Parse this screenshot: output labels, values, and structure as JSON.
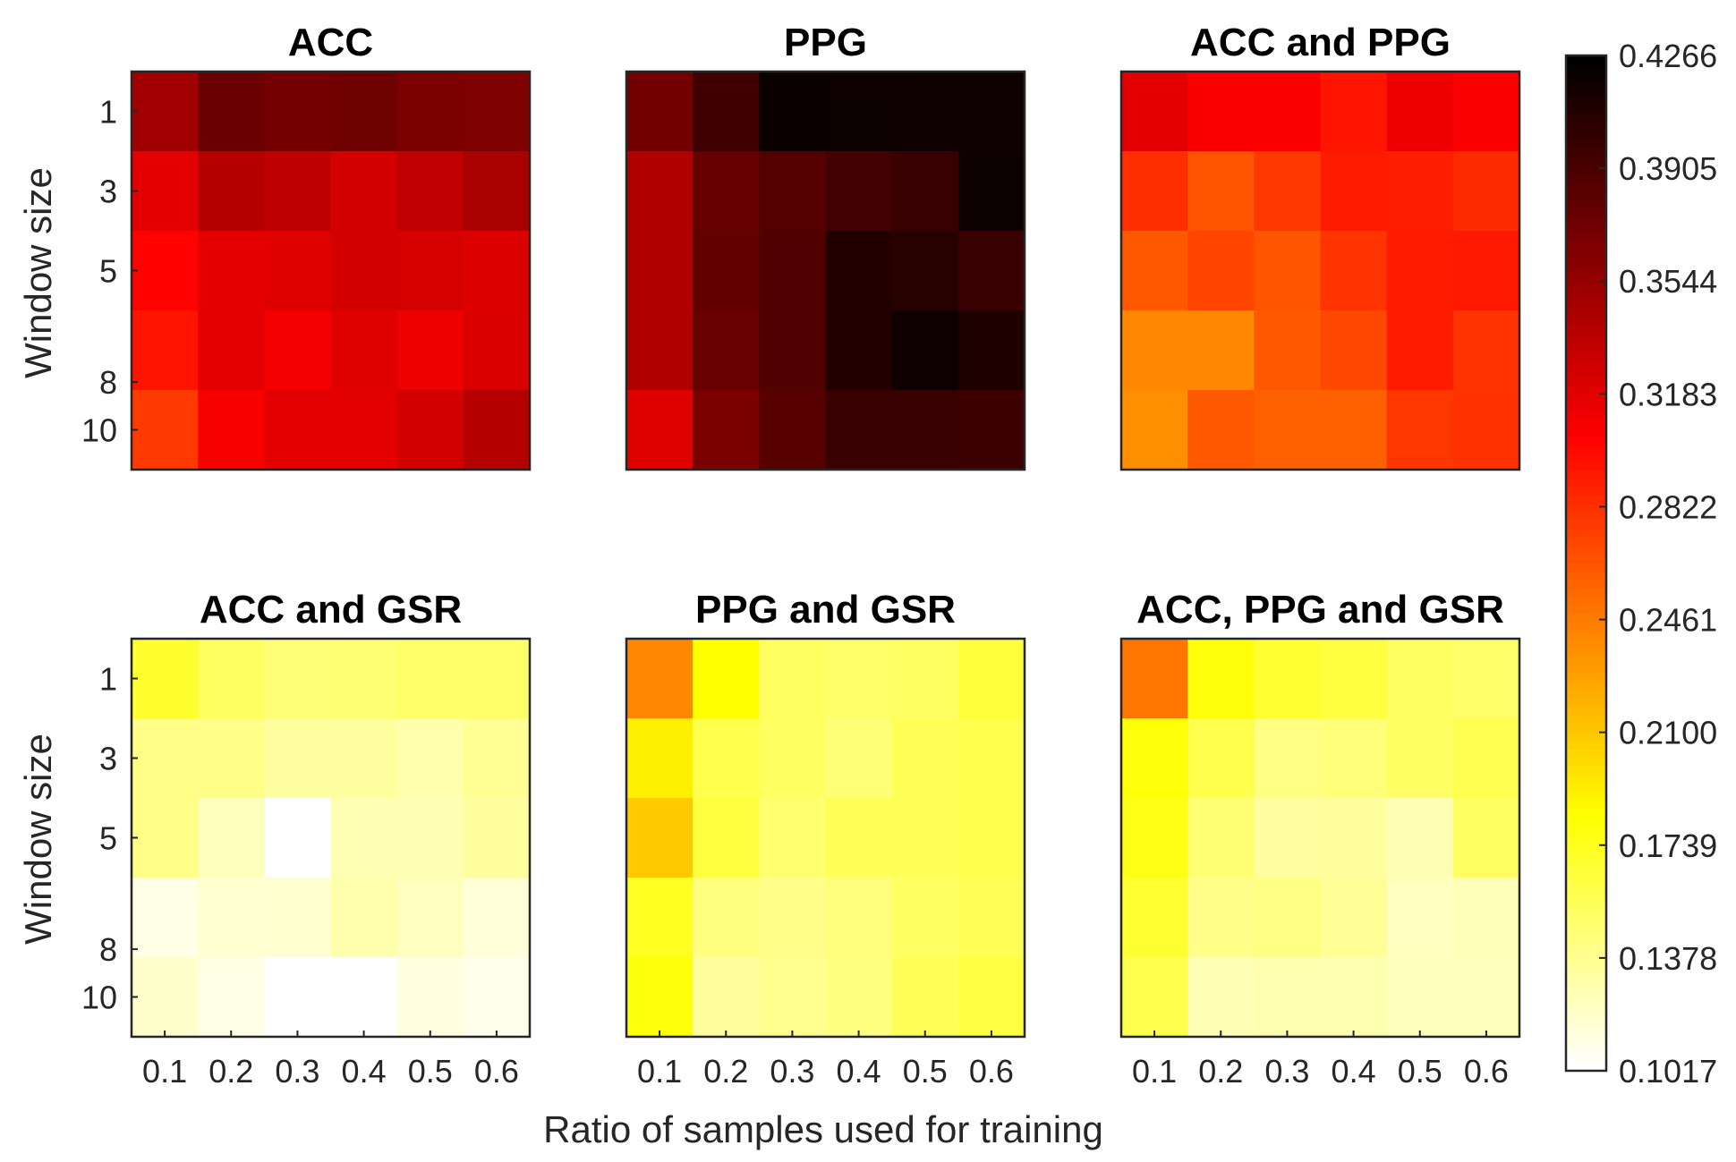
{
  "chart_data": {
    "type": "heatmap",
    "xlabel": "Ratio of samples used for training",
    "ylabel": "Window size",
    "x_categories": [
      "0.1",
      "0.2",
      "0.3",
      "0.4",
      "0.5",
      "0.6"
    ],
    "y_categories": [
      "1",
      "3",
      "5",
      "8",
      "10"
    ],
    "colormap": "hot",
    "colorbar": {
      "min": 0.1017,
      "max": 0.4266,
      "ticks": [
        "0.4266",
        "0.3905",
        "0.3544",
        "0.3183",
        "0.2822",
        "0.2461",
        "0.2100",
        "0.1739",
        "0.1378",
        "0.1017"
      ]
    },
    "panels": [
      {
        "title": "ACC",
        "values": [
          [
            0.35,
            0.376,
            0.371,
            0.374,
            0.367,
            0.366
          ],
          [
            0.318,
            0.34,
            0.336,
            0.326,
            0.335,
            0.346
          ],
          [
            0.304,
            0.317,
            0.319,
            0.326,
            0.325,
            0.321
          ],
          [
            0.295,
            0.318,
            0.31,
            0.32,
            0.313,
            0.322
          ],
          [
            0.277,
            0.308,
            0.318,
            0.318,
            0.326,
            0.34
          ]
        ]
      },
      {
        "title": "PPG",
        "values": [
          [
            0.372,
            0.396,
            0.422,
            0.421,
            0.42,
            0.42
          ],
          [
            0.342,
            0.378,
            0.386,
            0.394,
            0.4,
            0.421
          ],
          [
            0.342,
            0.38,
            0.388,
            0.41,
            0.408,
            0.4
          ],
          [
            0.342,
            0.377,
            0.388,
            0.41,
            0.42,
            0.412
          ],
          [
            0.32,
            0.368,
            0.385,
            0.4,
            0.4,
            0.398
          ]
        ]
      },
      {
        "title": "ACC and PPG",
        "values": [
          [
            0.318,
            0.307,
            0.307,
            0.295,
            0.313,
            0.307
          ],
          [
            0.283,
            0.264,
            0.278,
            0.292,
            0.29,
            0.284
          ],
          [
            0.262,
            0.272,
            0.264,
            0.28,
            0.292,
            0.293
          ],
          [
            0.24,
            0.24,
            0.262,
            0.27,
            0.292,
            0.28
          ],
          [
            0.237,
            0.262,
            0.259,
            0.259,
            0.279,
            0.281
          ]
        ]
      },
      {
        "title": "ACC and GSR",
        "values": [
          [
            0.168,
            0.152,
            0.145,
            0.146,
            0.15,
            0.15
          ],
          [
            0.14,
            0.14,
            0.132,
            0.132,
            0.128,
            0.136
          ],
          [
            0.14,
            0.123,
            0.1017,
            0.126,
            0.126,
            0.133
          ],
          [
            0.11,
            0.116,
            0.117,
            0.128,
            0.122,
            0.114
          ],
          [
            0.118,
            0.11,
            0.1017,
            0.1017,
            0.112,
            0.108
          ]
        ]
      },
      {
        "title": "PPG and GSR",
        "values": [
          [
            0.24,
            0.183,
            0.152,
            0.15,
            0.151,
            0.164
          ],
          [
            0.19,
            0.158,
            0.152,
            0.145,
            0.155,
            0.158
          ],
          [
            0.208,
            0.163,
            0.147,
            0.155,
            0.155,
            0.158
          ],
          [
            0.172,
            0.142,
            0.139,
            0.143,
            0.151,
            0.155
          ],
          [
            0.18,
            0.133,
            0.137,
            0.142,
            0.155,
            0.162
          ]
        ]
      },
      {
        "title": "ACC, PPG and GSR",
        "values": [
          [
            0.248,
            0.18,
            0.167,
            0.163,
            0.152,
            0.15
          ],
          [
            0.18,
            0.158,
            0.141,
            0.144,
            0.151,
            0.157
          ],
          [
            0.176,
            0.146,
            0.132,
            0.133,
            0.126,
            0.151
          ],
          [
            0.167,
            0.139,
            0.141,
            0.135,
            0.122,
            0.124
          ],
          [
            0.158,
            0.125,
            0.127,
            0.127,
            0.123,
            0.123
          ]
        ]
      }
    ]
  }
}
